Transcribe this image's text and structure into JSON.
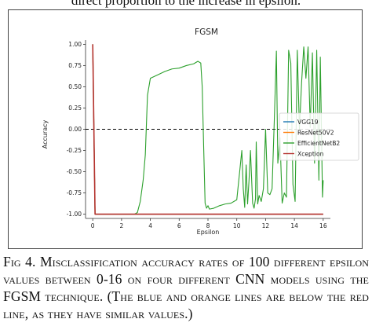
{
  "header": {
    "text": "direct proportion to the increase in epsilon."
  },
  "caption": {
    "label": "Fig 4.",
    "text": "Misclassification accuracy rates of 100 different epsilon values between 0-16 on four different CNN models using the FGSM technique. (The blue and orange lines are below the red line, as they have similar values.)"
  },
  "colors": {
    "VGG19": "#1f77b4",
    "ResNet50V2": "#ff7f0e",
    "EfficientNetB2": "#2ca02c",
    "Xception": "#b5332e",
    "zero_line": "#000000"
  },
  "chart_data": {
    "type": "line",
    "title": "FGSM",
    "xlabel": "Epsilon",
    "ylabel": "Accuracy",
    "xlim": [
      -0.5,
      16.5
    ],
    "ylim": [
      -1.05,
      1.05
    ],
    "xticks": [
      "0",
      "2",
      "4",
      "6",
      "8",
      "10",
      "12",
      "14",
      "16"
    ],
    "yticks": [
      "1.00",
      "0.75",
      "0.50",
      "0.25",
      "0.00",
      "-0.25",
      "-0.50",
      "-0.75",
      "-1.00"
    ],
    "grid": false,
    "legend_position": "center-right",
    "reference_line": {
      "y": 0.0,
      "style": "dashed"
    },
    "series": [
      {
        "name": "VGG19",
        "x": [
          0,
          0.16,
          16
        ],
        "y": [
          1.0,
          -1.0,
          -1.0
        ]
      },
      {
        "name": "ResNet50V2",
        "x": [
          0,
          0.16,
          16
        ],
        "y": [
          1.0,
          -1.0,
          -1.0
        ]
      },
      {
        "name": "EfficientNetB2",
        "x": [
          0,
          0.16,
          2.9,
          3.1,
          3.3,
          3.5,
          3.65,
          3.8,
          4.0,
          4.5,
          5.0,
          5.5,
          6.0,
          6.5,
          7.0,
          7.3,
          7.5,
          7.6,
          7.7,
          7.8,
          7.9,
          8.0,
          8.1,
          8.4,
          8.8,
          9.2,
          9.6,
          10.0,
          10.2,
          10.35,
          10.45,
          10.55,
          10.65,
          10.75,
          10.85,
          10.95,
          11.1,
          11.2,
          11.3,
          11.35,
          11.45,
          11.55,
          11.7,
          11.85,
          12.0,
          12.15,
          12.3,
          12.45,
          12.6,
          12.75,
          12.85,
          13.0,
          13.15,
          13.3,
          13.45,
          13.6,
          13.75,
          13.9,
          14.05,
          14.2,
          14.35,
          14.5,
          14.65,
          14.8,
          14.95,
          15.1,
          15.25,
          15.4,
          15.55,
          15.7,
          15.8,
          15.95,
          16.0
        ],
        "y": [
          1.0,
          -1.0,
          -1.0,
          -0.98,
          -0.85,
          -0.6,
          -0.3,
          0.4,
          0.6,
          0.64,
          0.68,
          0.71,
          0.72,
          0.75,
          0.77,
          0.8,
          0.78,
          0.5,
          -0.2,
          -0.87,
          -0.93,
          -0.9,
          -0.94,
          -0.93,
          -0.9,
          -0.88,
          -0.87,
          -0.83,
          -0.5,
          -0.25,
          -0.7,
          -0.92,
          -0.42,
          -0.88,
          -0.6,
          -0.25,
          -0.87,
          -0.93,
          -0.82,
          -0.15,
          -0.88,
          -0.78,
          -0.85,
          -0.7,
          0.0,
          -0.75,
          -0.77,
          -0.7,
          0.08,
          0.92,
          -0.4,
          -0.1,
          -0.87,
          -0.75,
          -0.8,
          0.93,
          0.78,
          -0.65,
          -0.85,
          0.93,
          0.0,
          0.55,
          0.97,
          0.6,
          0.97,
          0.02,
          0.9,
          -0.4,
          0.93,
          -0.6,
          0.85,
          -0.8,
          -0.6
        ]
      },
      {
        "name": "Xception",
        "x": [
          0,
          0.16,
          16
        ],
        "y": [
          1.0,
          -1.0,
          -1.0
        ]
      }
    ]
  }
}
